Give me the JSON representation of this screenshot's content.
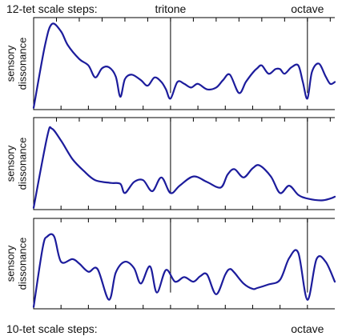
{
  "top_label": "12-tet scale steps:",
  "bottom_label": "10-tet scale steps:",
  "top_markers": [
    {
      "label": "tritone",
      "x": 600
    },
    {
      "label": "octave",
      "x": 1200
    }
  ],
  "bottom_markers": [
    {
      "label": "octave",
      "x": 1200
    }
  ],
  "colors": {
    "curve": "#1c1c9c"
  },
  "chart_data": [
    {
      "type": "line",
      "ylabel": [
        "sensory",
        "dissonance"
      ],
      "xlim": [
        0,
        1320
      ],
      "ylim": [
        0,
        1
      ],
      "tick_step_top": 100,
      "tick_step_bottom": 120,
      "x": [
        0,
        50,
        80,
        120,
        150,
        200,
        240,
        270,
        300,
        330,
        360,
        380,
        400,
        430,
        470,
        500,
        530,
        560,
        580,
        600,
        630,
        660,
        690,
        720,
        760,
        800,
        830,
        860,
        900,
        930,
        960,
        980,
        1000,
        1030,
        1060,
        1080,
        1100,
        1130,
        1160,
        1180,
        1200,
        1220,
        1250,
        1280,
        1300,
        1320
      ],
      "y": [
        0.02,
        0.7,
        0.93,
        0.85,
        0.7,
        0.55,
        0.48,
        0.35,
        0.45,
        0.46,
        0.36,
        0.14,
        0.33,
        0.38,
        0.32,
        0.26,
        0.35,
        0.3,
        0.22,
        0.12,
        0.3,
        0.28,
        0.24,
        0.28,
        0.22,
        0.24,
        0.32,
        0.38,
        0.18,
        0.3,
        0.4,
        0.45,
        0.48,
        0.39,
        0.44,
        0.44,
        0.39,
        0.46,
        0.48,
        0.3,
        0.12,
        0.41,
        0.5,
        0.36,
        0.28,
        0.3
      ]
    },
    {
      "type": "line",
      "ylabel": [
        "sensory",
        "dissonance"
      ],
      "xlim": [
        0,
        1320
      ],
      "ylim": [
        0,
        1
      ],
      "tick_step_top": 100,
      "tick_step_bottom": 120,
      "x": [
        0,
        60,
        80,
        120,
        170,
        220,
        270,
        340,
        380,
        400,
        440,
        480,
        520,
        560,
        600,
        640,
        700,
        760,
        820,
        850,
        880,
        920,
        960,
        990,
        1040,
        1080,
        1120,
        1160,
        1200,
        1260,
        1300,
        1320
      ],
      "y": [
        0.02,
        0.8,
        0.88,
        0.75,
        0.55,
        0.42,
        0.32,
        0.29,
        0.28,
        0.18,
        0.3,
        0.32,
        0.2,
        0.35,
        0.18,
        0.26,
        0.36,
        0.3,
        0.24,
        0.38,
        0.44,
        0.35,
        0.45,
        0.48,
        0.36,
        0.18,
        0.26,
        0.16,
        0.12,
        0.1,
        0.12,
        0.14
      ]
    },
    {
      "type": "line",
      "ylabel": [
        "sensory",
        "dissonance"
      ],
      "xlim": [
        0,
        1320
      ],
      "ylim": [
        0,
        1
      ],
      "tick_step_top": 120,
      "tick_step_bottom": 120,
      "x": [
        0,
        40,
        60,
        90,
        120,
        170,
        200,
        240,
        280,
        330,
        360,
        400,
        440,
        470,
        510,
        540,
        580,
        620,
        660,
        700,
        730,
        760,
        800,
        840,
        860,
        880,
        920,
        960,
        980,
        1030,
        1080,
        1120,
        1160,
        1200,
        1240,
        1280,
        1320
      ],
      "y": [
        0.02,
        0.68,
        0.8,
        0.8,
        0.52,
        0.55,
        0.5,
        0.41,
        0.44,
        0.1,
        0.4,
        0.52,
        0.45,
        0.28,
        0.47,
        0.18,
        0.43,
        0.3,
        0.35,
        0.3,
        0.36,
        0.38,
        0.16,
        0.38,
        0.44,
        0.4,
        0.28,
        0.22,
        0.23,
        0.27,
        0.32,
        0.56,
        0.62,
        0.1,
        0.55,
        0.52,
        0.3
      ]
    }
  ]
}
